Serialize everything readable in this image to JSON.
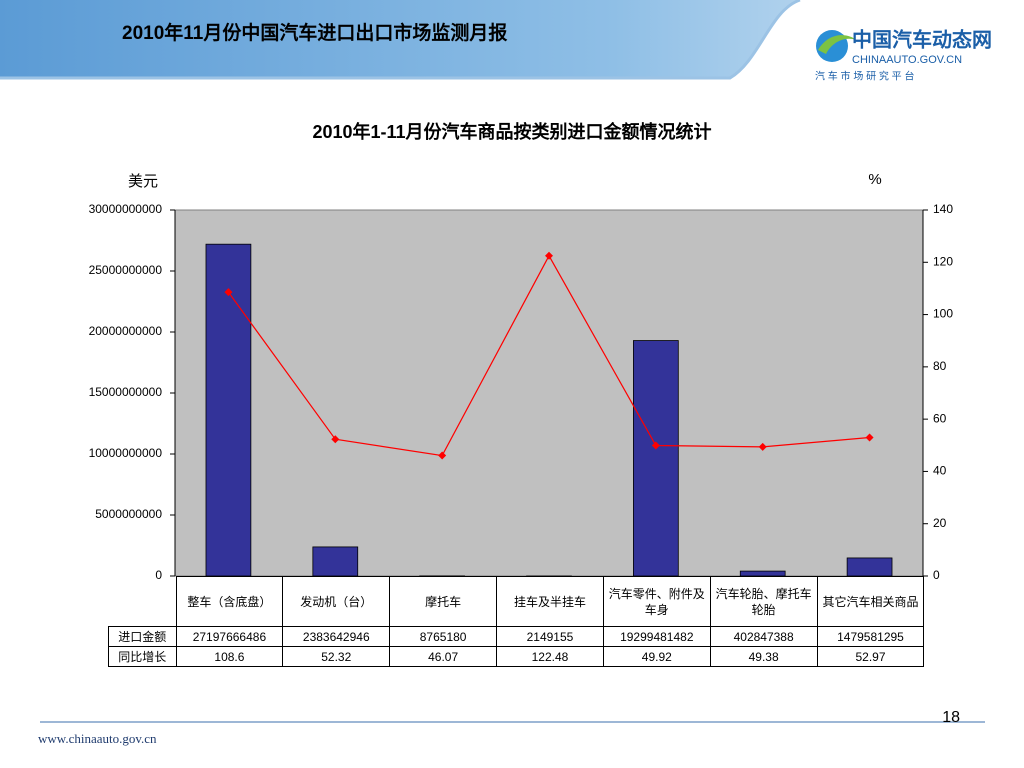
{
  "header": {
    "title": "2010年11月份中国汽车进口出口市场监测月报",
    "logo_name": "中国汽车动态网",
    "logo_url": "CHINAAUTO.GOV.CN",
    "logo_slogan": "汽 车 市 场 研 究 平 台"
  },
  "chart_data": {
    "type": "bar",
    "title": "2010年1-11月份汽车商品按类别进口金额情况统计",
    "y_label": "美元",
    "y2_label": "%",
    "categories": [
      "整车（含底盘）",
      "发动机（台）",
      "摩托车",
      "挂车及半挂车",
      "汽车零件、附件及车身",
      "汽车轮胎、摩托车轮胎",
      "其它汽车相关商品"
    ],
    "series": [
      {
        "name": "进口金额",
        "type": "bar",
        "color": "#333399",
        "values": [
          27197666486,
          2383642946,
          8765180,
          2149155,
          19299481482,
          402847388,
          1479581295
        ]
      },
      {
        "name": "同比增长",
        "type": "line",
        "axis": "y2",
        "color": "#ff0000",
        "values": [
          108.6,
          52.32,
          46.07,
          122.48,
          49.92,
          49.38,
          52.97
        ]
      }
    ],
    "ylim": [
      0,
      30000000000
    ],
    "yticks": [
      0,
      5000000000,
      10000000000,
      15000000000,
      20000000000,
      25000000000,
      30000000000
    ],
    "y2lim": [
      0,
      140
    ],
    "y2ticks": [
      0,
      20,
      40,
      60,
      80,
      100,
      120,
      140
    ],
    "plot_background": "#c0c0c0"
  },
  "footer": {
    "url": "www.chinaauto.gov.cn",
    "page": "18"
  }
}
